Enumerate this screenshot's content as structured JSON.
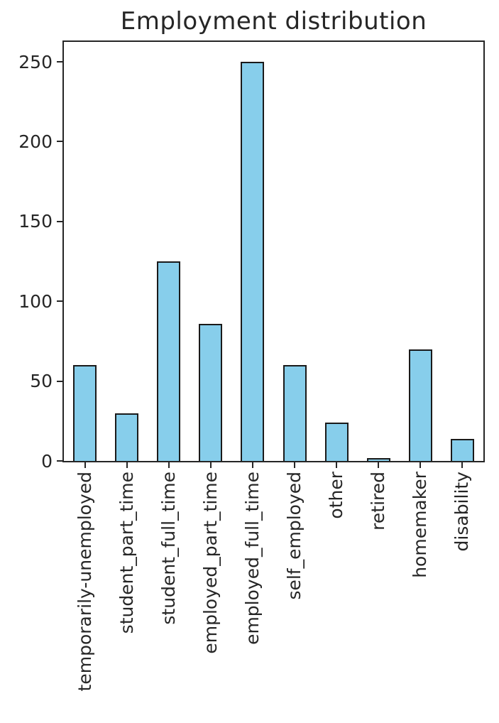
{
  "chart_data": {
    "type": "bar",
    "title": "Employment distribution",
    "categories": [
      "temporarily-unemployed",
      "student_part_time",
      "student_full_time",
      "employed_part_time",
      "employed_full_time",
      "self_employed",
      "other",
      "retired",
      "homemaker",
      "disability"
    ],
    "values": [
      60,
      30,
      125,
      86,
      250,
      60,
      24,
      2,
      70,
      14
    ],
    "xlabel": "",
    "ylabel": "",
    "ylim": [
      0,
      262.5
    ],
    "yticks": [
      0,
      50,
      100,
      150,
      200,
      250
    ],
    "grid": false,
    "legend": false,
    "x_tick_rotation_deg": 90,
    "bar_fill_color": "#87CEEB",
    "bar_edge_color": "#1a1a1a",
    "spine_color": "#262626",
    "text_color": "#262626",
    "background_color": "#ffffff"
  }
}
